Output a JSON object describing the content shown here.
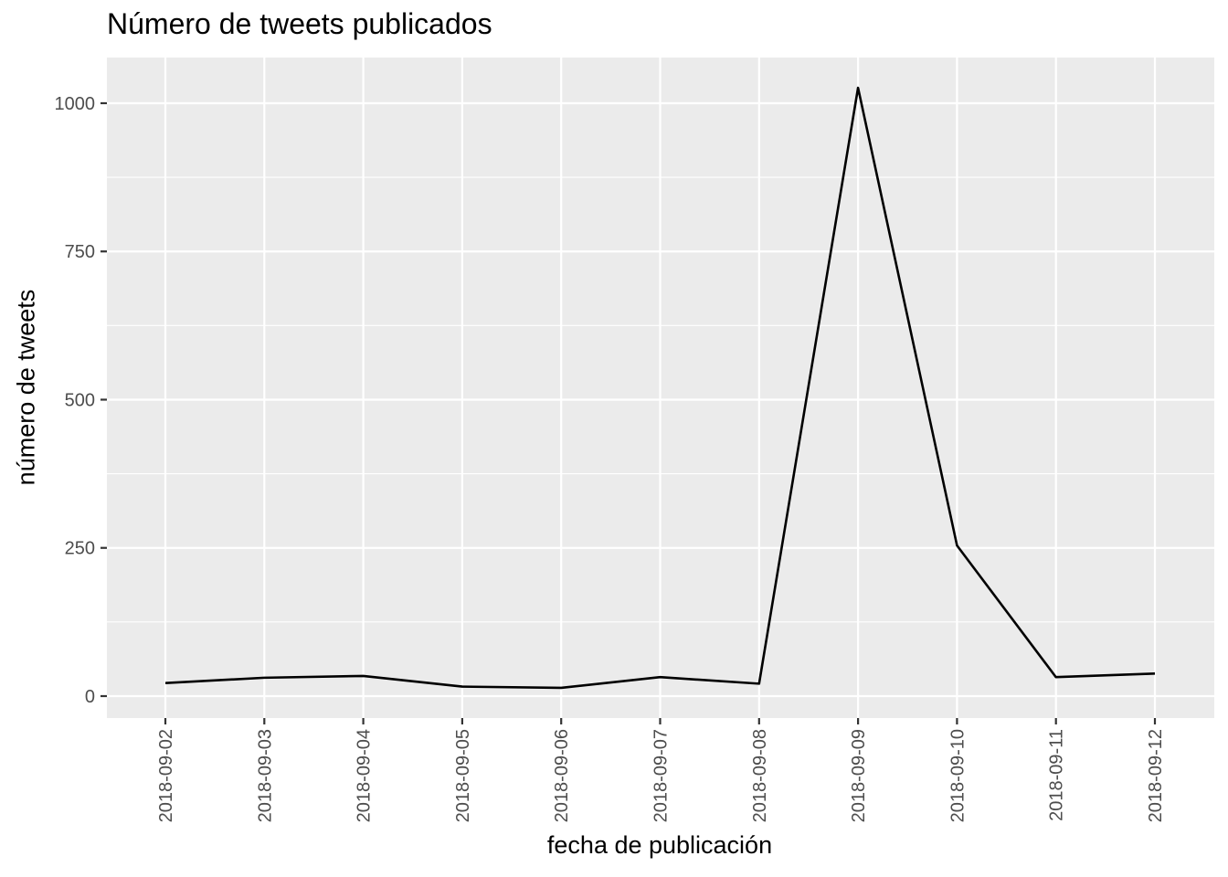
{
  "chart_data": {
    "type": "line",
    "title": "Número de tweets publicados",
    "xlabel": "fecha de publicación",
    "ylabel": "número de tweets",
    "x": [
      "2018-09-02",
      "2018-09-03",
      "2018-09-04",
      "2018-09-05",
      "2018-09-06",
      "2018-09-07",
      "2018-09-08",
      "2018-09-09",
      "2018-09-10",
      "2018-09-11",
      "2018-09-12"
    ],
    "series": [
      {
        "values": [
          22,
          31,
          34,
          16,
          14,
          32,
          21,
          1026,
          254,
          32,
          38
        ],
        "color": "#000000"
      }
    ],
    "yticks": [
      0,
      250,
      500,
      750,
      1000
    ],
    "ytick_labels": [
      "0",
      "250",
      "500",
      "750",
      "1000"
    ],
    "ylim": [
      -37,
      1077
    ],
    "grid": true,
    "panel_background": "#ebebeb",
    "grid_color": "#ffffff"
  }
}
